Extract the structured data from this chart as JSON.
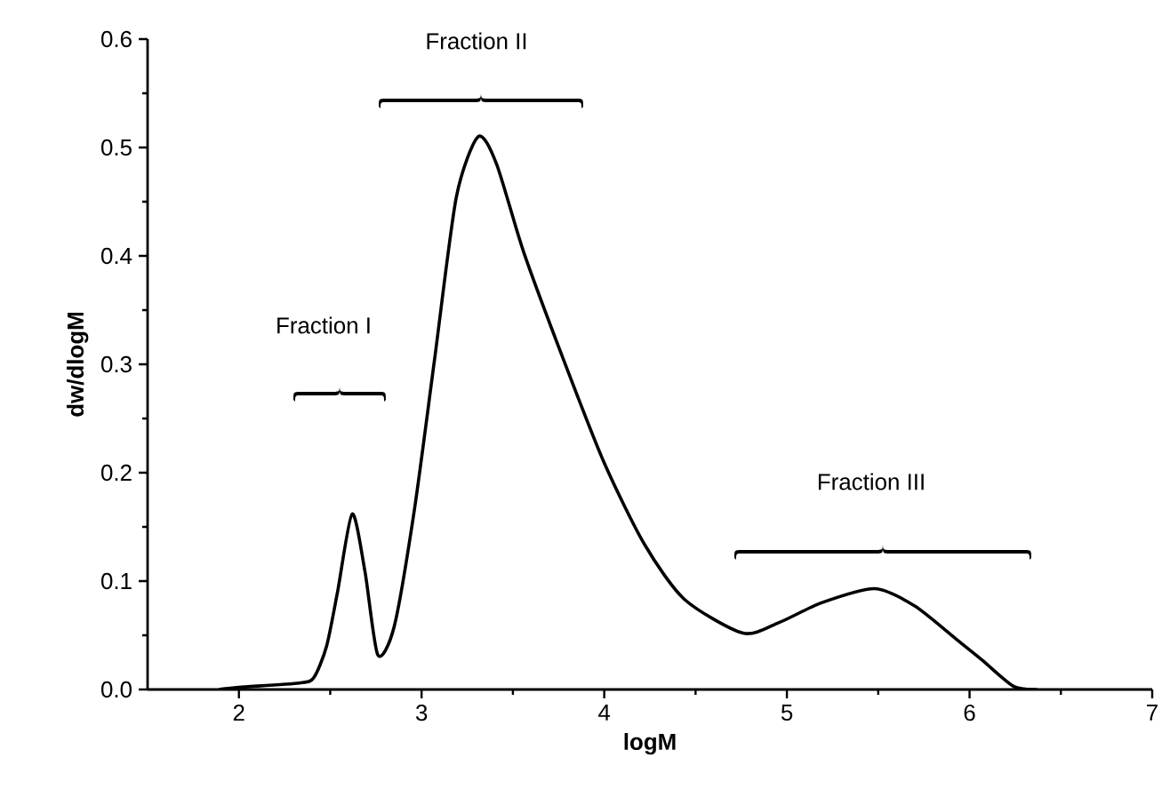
{
  "chart_data": {
    "type": "line",
    "xlabel": "logM",
    "ylabel": "dw/dlogM",
    "xlim": [
      1.5,
      7
    ],
    "xticks": [
      2,
      3,
      4,
      5,
      6,
      7
    ],
    "ylim": [
      0,
      0.6
    ],
    "yticks": [
      {
        "value": 0,
        "label": "0.0"
      },
      {
        "value": 0.1,
        "label": "0.1"
      },
      {
        "value": 0.2,
        "label": "0.2"
      },
      {
        "value": 0.3,
        "label": "0.3"
      },
      {
        "value": 0.4,
        "label": "0.4"
      },
      {
        "value": 0.5,
        "label": "0.5"
      },
      {
        "value": 0.6,
        "label": "0.6"
      }
    ],
    "marker": "none",
    "line_style": "solid",
    "x": [
      1.89,
      2.0,
      2.33,
      2.41,
      2.48,
      2.54,
      2.62,
      2.69,
      2.76,
      2.85,
      2.96,
      3.07,
      3.19,
      3.31,
      3.41,
      3.56,
      3.78,
      4.0,
      4.22,
      4.44,
      4.76,
      4.96,
      5.19,
      5.48,
      5.7,
      5.93,
      6.07,
      6.24,
      6.37
    ],
    "series": [
      {
        "color": "#000000",
        "values": [
          0,
          0.002,
          0.006,
          0.011,
          0.04,
          0.09,
          0.162,
          0.109,
          0.032,
          0.058,
          0.165,
          0.303,
          0.454,
          0.51,
          0.485,
          0.403,
          0.303,
          0.209,
          0.134,
          0.083,
          0.052,
          0.062,
          0.08,
          0.093,
          0.077,
          0.046,
          0.027,
          0.003,
          0
        ]
      }
    ],
    "annotations": [
      "Fraction I",
      "Fraction II",
      "Fraction III"
    ]
  }
}
